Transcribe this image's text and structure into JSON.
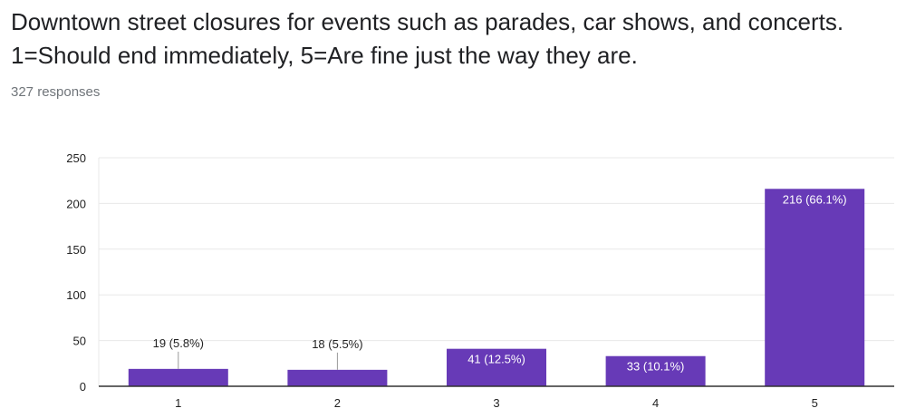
{
  "header": {
    "title": "Downtown street closures for events such as parades, car shows, and concerts. 1=Should end immediately, 5=Are fine just the way they are.",
    "responses": "327 responses"
  },
  "colors": {
    "bar": "#673ab7",
    "grid": "#e8e8e8",
    "axis": "#333333",
    "label_inside": "#ffffff",
    "label_outside": "#222222"
  },
  "chart_data": {
    "type": "bar",
    "categories": [
      "1",
      "2",
      "3",
      "4",
      "5"
    ],
    "values": [
      19,
      18,
      41,
      33,
      216
    ],
    "data_labels": [
      "19 (5.8%)",
      "18 (5.5%)",
      "41 (12.5%)",
      "33 (10.1%)",
      "216 (66.1%)"
    ],
    "yticks": [
      "0",
      "50",
      "100",
      "150",
      "200",
      "250"
    ],
    "ylim": [
      0,
      250
    ],
    "grid": true,
    "legend": false
  }
}
